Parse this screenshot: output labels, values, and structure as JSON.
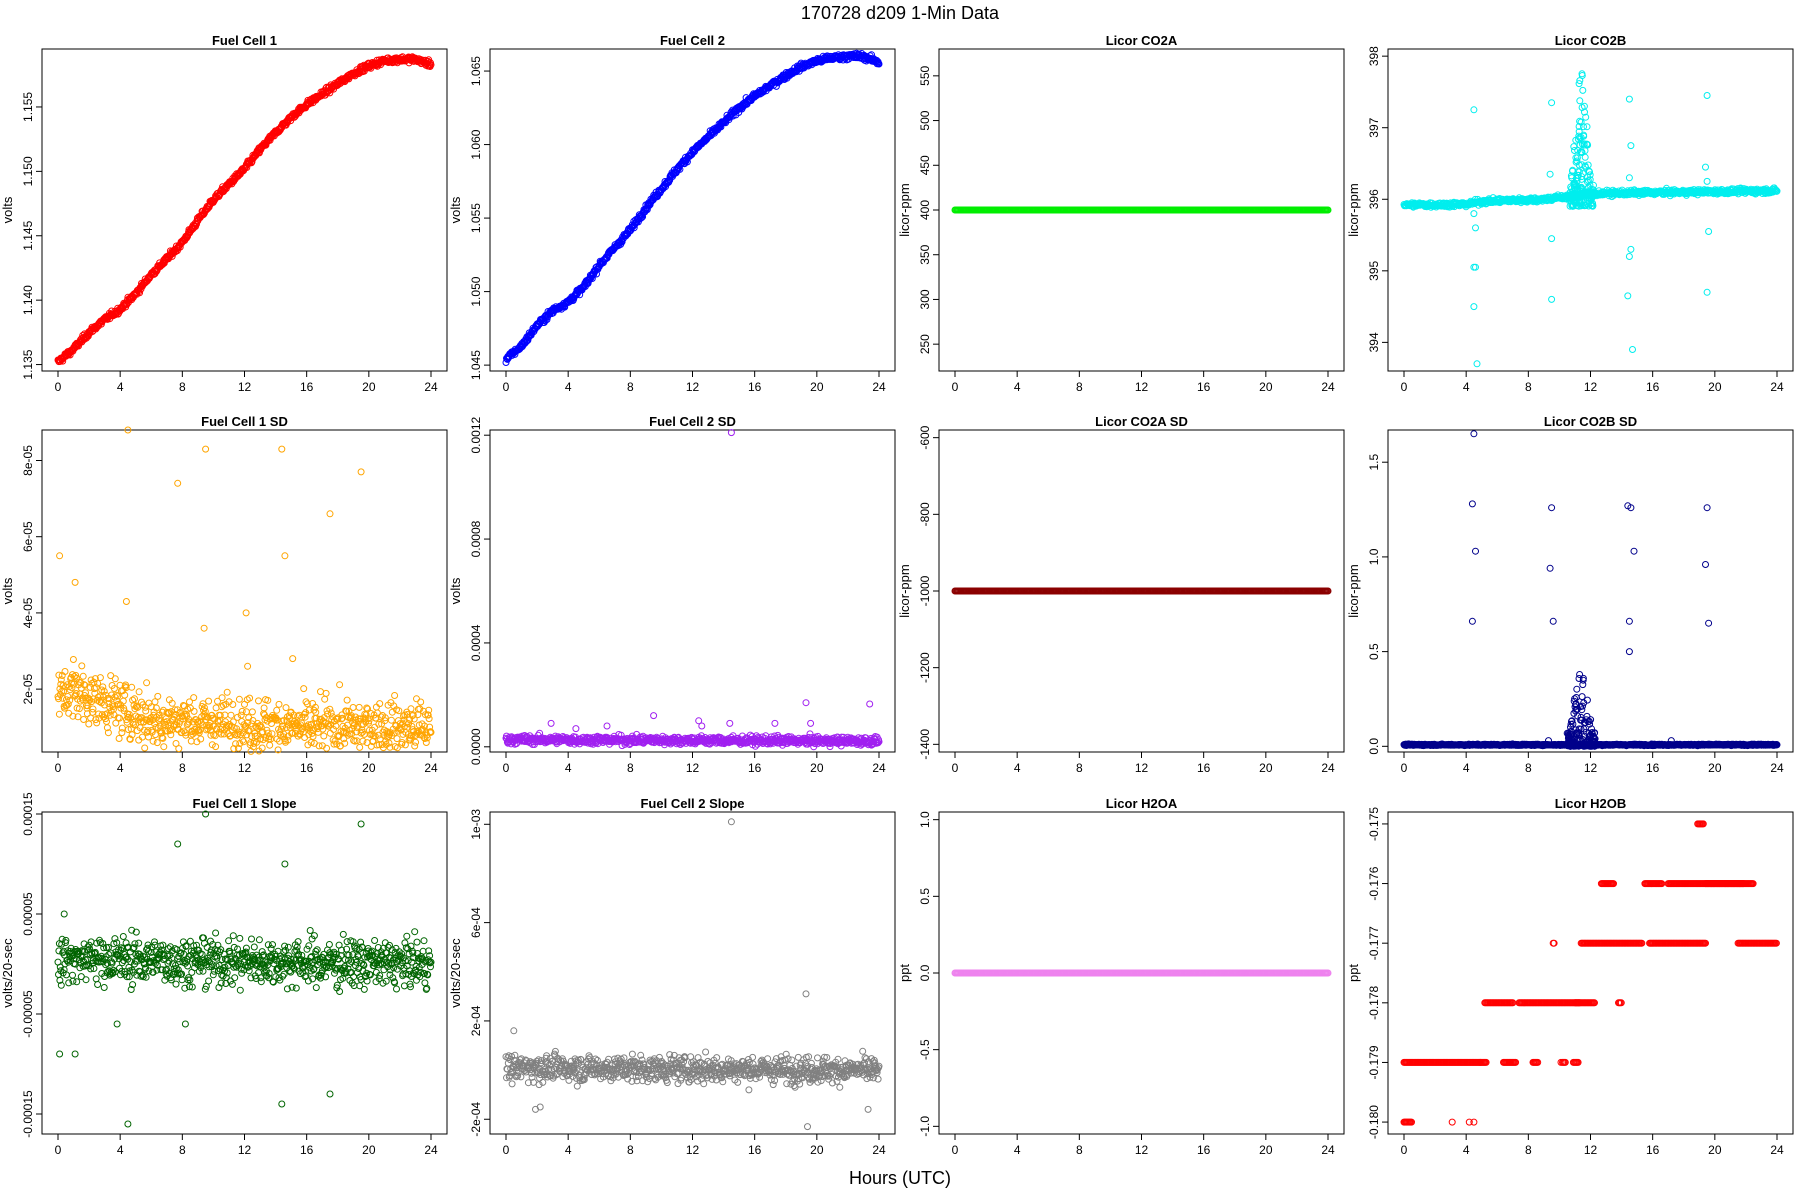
{
  "title": "170728   d209   1-Min Data",
  "xlabel": "Hours (UTC)",
  "chart_data": [
    {
      "type": "scatter",
      "title": "Fuel Cell 1",
      "ylabel": "volts",
      "color": "#ff0000",
      "xlim": [
        0,
        24
      ],
      "ylim": [
        1.1345,
        1.1595
      ],
      "xticks": [
        0,
        4,
        8,
        12,
        16,
        20,
        24
      ],
      "yticks": [
        1.135,
        1.14,
        1.145,
        1.15,
        1.155
      ],
      "yticklabels": [
        "1.135",
        "1.140",
        "1.145",
        "1.150",
        "1.155"
      ],
      "pattern": {
        "kind": "points",
        "points": [
          [
            0,
            1.1352
          ],
          [
            1,
            1.1362
          ],
          [
            2,
            1.1375
          ],
          [
            3,
            1.1385
          ],
          [
            4,
            1.1393
          ],
          [
            5,
            1.1405
          ],
          [
            6,
            1.142
          ],
          [
            7,
            1.1432
          ],
          [
            8,
            1.1445
          ],
          [
            9,
            1.1462
          ],
          [
            10,
            1.1478
          ],
          [
            11,
            1.149
          ],
          [
            12,
            1.1502
          ],
          [
            13,
            1.1517
          ],
          [
            14,
            1.153
          ],
          [
            15,
            1.1542
          ],
          [
            16,
            1.1552
          ],
          [
            17,
            1.156
          ],
          [
            18,
            1.1568
          ],
          [
            19,
            1.1576
          ],
          [
            20,
            1.1582
          ],
          [
            21,
            1.1586
          ],
          [
            22,
            1.1587
          ],
          [
            23,
            1.1587
          ],
          [
            24,
            1.1583
          ]
        ],
        "noise": 0.0002
      }
    },
    {
      "type": "scatter",
      "title": "Fuel Cell 2",
      "ylabel": "volts",
      "color": "#0000ff",
      "xlim": [
        0,
        24
      ],
      "ylim": [
        1.0446,
        1.0665
      ],
      "xticks": [
        0,
        4,
        8,
        12,
        16,
        20,
        24
      ],
      "yticks": [
        1.045,
        1.05,
        1.055,
        1.06,
        1.065
      ],
      "yticklabels": [
        "1.045",
        "1.050",
        "1.055",
        "1.060",
        "1.065"
      ],
      "pattern": {
        "kind": "points",
        "points": [
          [
            0,
            1.0454
          ],
          [
            1,
            1.0463
          ],
          [
            2,
            1.0477
          ],
          [
            3,
            1.0487
          ],
          [
            4,
            1.0493
          ],
          [
            5,
            1.0503
          ],
          [
            6,
            1.0518
          ],
          [
            7,
            1.053
          ],
          [
            8,
            1.0542
          ],
          [
            9,
            1.0557
          ],
          [
            10,
            1.057
          ],
          [
            11,
            1.0583
          ],
          [
            12,
            1.0595
          ],
          [
            13,
            1.0605
          ],
          [
            14,
            1.0615
          ],
          [
            15,
            1.0625
          ],
          [
            16,
            1.0633
          ],
          [
            17,
            1.064
          ],
          [
            18,
            1.0647
          ],
          [
            19,
            1.0653
          ],
          [
            20,
            1.0657
          ],
          [
            21,
            1.0659
          ],
          [
            22,
            1.066
          ],
          [
            23,
            1.066
          ],
          [
            24,
            1.0656
          ]
        ],
        "noise": 0.00018
      }
    },
    {
      "type": "scatter",
      "title": "Licor CO2A",
      "ylabel": "licor-ppm",
      "color": "#00ee00",
      "xlim": [
        0,
        24
      ],
      "ylim": [
        220,
        580
      ],
      "xticks": [
        0,
        4,
        8,
        12,
        16,
        20,
        24
      ],
      "yticks": [
        250,
        300,
        350,
        400,
        450,
        500,
        550
      ],
      "yticklabels": [
        "250",
        "300",
        "350",
        "400",
        "450",
        "500",
        "550"
      ],
      "pattern": {
        "kind": "const",
        "value": 400,
        "noise": 0
      }
    },
    {
      "type": "scatter",
      "title": "Licor CO2B",
      "ylabel": "licor-ppm",
      "color": "#00eeee",
      "xlim": [
        0,
        24
      ],
      "ylim": [
        393.6,
        398.1
      ],
      "xticks": [
        0,
        4,
        8,
        12,
        16,
        20,
        24
      ],
      "yticks": [
        394,
        395,
        396,
        397,
        398
      ],
      "yticklabels": [
        "394",
        "395",
        "396",
        "397",
        "398"
      ],
      "pattern": {
        "kind": "points",
        "points": [
          [
            0,
            395.92
          ],
          [
            4,
            395.93
          ],
          [
            5,
            395.97
          ],
          [
            9,
            396.0
          ],
          [
            11,
            396.05
          ],
          [
            12,
            396.08
          ],
          [
            24,
            396.12
          ]
        ],
        "noise": 0.03
      },
      "outliers": [
        [
          4.5,
          397.25
        ],
        [
          4.5,
          395.05
        ],
        [
          4.6,
          395.05
        ],
        [
          4.5,
          394.5
        ],
        [
          4.7,
          393.7
        ],
        [
          4.6,
          395.6
        ],
        [
          4.5,
          395.8
        ],
        [
          9.5,
          397.35
        ],
        [
          9.5,
          394.6
        ],
        [
          9.5,
          395.45
        ],
        [
          9.4,
          396.35
        ],
        [
          14.5,
          397.4
        ],
        [
          14.5,
          396.3
        ],
        [
          14.6,
          395.3
        ],
        [
          14.5,
          395.2
        ],
        [
          14.4,
          394.65
        ],
        [
          14.7,
          393.9
        ],
        [
          14.6,
          396.75
        ],
        [
          19.5,
          397.45
        ],
        [
          19.5,
          394.7
        ],
        [
          19.6,
          395.55
        ],
        [
          19.4,
          396.45
        ],
        [
          19.5,
          396.25
        ]
      ],
      "burst": {
        "x": [
          10.6,
          12.2
        ],
        "y": [
          395.9,
          398.1
        ],
        "n": 160
      }
    },
    {
      "type": "scatter",
      "title": "Fuel Cell 1 SD",
      "ylabel": "volts",
      "color": "#ffa500",
      "xlim": [
        0,
        24
      ],
      "ylim": [
        3.5e-06,
        8.8e-05
      ],
      "xticks": [
        0,
        4,
        8,
        12,
        16,
        20,
        24
      ],
      "yticks": [
        2e-05,
        4e-05,
        6e-05,
        8e-05
      ],
      "yticklabels": [
        "2e-05",
        "4e-05",
        "6e-05",
        "8e-05"
      ],
      "pattern": {
        "kind": "points",
        "points": [
          [
            0,
            1.8e-05
          ],
          [
            1,
            2e-05
          ],
          [
            2,
            1.8e-05
          ],
          [
            4,
            1.5e-05
          ],
          [
            6,
            1.2e-05
          ],
          [
            10,
            1.1e-05
          ],
          [
            16,
            1e-05
          ],
          [
            24,
            1e-05
          ]
        ],
        "noise": 6e-06
      },
      "outliers": [
        [
          0.1,
          5.5e-05
        ],
        [
          4.5,
          8.8e-05
        ],
        [
          7.7,
          7.4e-05
        ],
        [
          9.5,
          8.3e-05
        ],
        [
          14.4,
          8.3e-05
        ],
        [
          14.6,
          5.5e-05
        ],
        [
          17.5,
          6.6e-05
        ],
        [
          19.5,
          7.7e-05
        ],
        [
          12.1,
          4e-05
        ],
        [
          9.4,
          3.6e-05
        ],
        [
          4.4,
          4.3e-05
        ],
        [
          15.1,
          2.8e-05
        ],
        [
          1.1,
          4.8e-05
        ],
        [
          12.2,
          2.6e-05
        ]
      ]
    },
    {
      "type": "scatter",
      "title": "Fuel Cell 2 SD",
      "ylabel": "volts",
      "color": "#a020f0",
      "xlim": [
        0,
        24
      ],
      "ylim": [
        -2e-05,
        0.00122
      ],
      "xticks": [
        0,
        4,
        8,
        12,
        16,
        20,
        24
      ],
      "yticks": [
        0,
        0.0004,
        0.0008,
        0.0012
      ],
      "yticklabels": [
        "0.0000",
        "0.0004",
        "0.0008",
        "0.0012"
      ],
      "pattern": {
        "kind": "points",
        "points": [
          [
            0,
            2.8e-05
          ],
          [
            24,
            2.2e-05
          ]
        ],
        "noise": 1.4e-05
      },
      "outliers": [
        [
          14.5,
          0.00121
        ],
        [
          19.3,
          0.00017
        ],
        [
          23.4,
          0.000165
        ],
        [
          9.5,
          0.00012
        ],
        [
          12.4,
          0.0001
        ],
        [
          12.6,
          8e-05
        ],
        [
          14.4,
          9e-05
        ],
        [
          17.3,
          9e-05
        ],
        [
          2.9,
          9e-05
        ],
        [
          6.5,
          8e-05
        ],
        [
          19.6,
          9e-05
        ],
        [
          4.5,
          7e-05
        ]
      ]
    },
    {
      "type": "scatter",
      "title": "Licor CO2A SD",
      "ylabel": "licor-ppm",
      "color": "#8b0000",
      "xlim": [
        0,
        24
      ],
      "ylim": [
        -1420,
        -580
      ],
      "xticks": [
        0,
        4,
        8,
        12,
        16,
        20,
        24
      ],
      "yticks": [
        -1400,
        -1200,
        -1000,
        -800,
        -600
      ],
      "yticklabels": [
        "-1400",
        "-1200",
        "-1000",
        "-800",
        "-600"
      ],
      "pattern": {
        "kind": "const",
        "value": -1000,
        "noise": 0
      }
    },
    {
      "type": "scatter",
      "title": "Licor CO2B SD",
      "ylabel": "licor-ppm",
      "color": "#00008b",
      "xlim": [
        0,
        24
      ],
      "ylim": [
        -0.03,
        1.67
      ],
      "xticks": [
        0,
        4,
        8,
        12,
        16,
        20,
        24
      ],
      "yticks": [
        0,
        0.5,
        1,
        1.5
      ],
      "yticklabels": [
        "0.0",
        "0.5",
        "1.0",
        "1.5"
      ],
      "pattern": {
        "kind": "points",
        "points": [
          [
            0,
            0.008
          ],
          [
            24,
            0.008
          ]
        ],
        "noise": 0.003
      },
      "outliers": [
        [
          4.5,
          1.65
        ],
        [
          4.4,
          1.28
        ],
        [
          4.6,
          1.03
        ],
        [
          4.4,
          0.66
        ],
        [
          9.5,
          1.26
        ],
        [
          9.4,
          0.94
        ],
        [
          9.6,
          0.66
        ],
        [
          14.4,
          1.27
        ],
        [
          14.6,
          1.26
        ],
        [
          14.8,
          1.03
        ],
        [
          14.5,
          0.66
        ],
        [
          14.5,
          0.5
        ],
        [
          19.5,
          1.26
        ],
        [
          19.4,
          0.96
        ],
        [
          19.6,
          0.65
        ],
        [
          17.2,
          0.03
        ],
        [
          9.3,
          0.03
        ]
      ],
      "burst": {
        "x": [
          10.5,
          12.3
        ],
        "y": [
          0.0,
          0.48
        ],
        "n": 140
      }
    },
    {
      "type": "scatter",
      "title": "Fuel Cell 1 Slope",
      "ylabel": "volts/20-sec",
      "color": "#006400",
      "xlim": [
        0,
        24
      ],
      "ylim": [
        -0.00017,
        0.000152
      ],
      "xticks": [
        0,
        4,
        8,
        12,
        16,
        20,
        24
      ],
      "yticks": [
        -0.00015,
        -5e-05,
        5e-05,
        0.00015
      ],
      "yticklabels": [
        "-0.00015",
        "-0.00005",
        "0.00005",
        "0.00015"
      ],
      "pattern": {
        "kind": "points",
        "points": [
          [
            0,
            5e-06
          ],
          [
            24,
            0.0
          ]
        ],
        "noise": 2e-05
      },
      "outliers": [
        [
          9.5,
          0.00015
        ],
        [
          19.5,
          0.00014
        ],
        [
          7.7,
          0.00012
        ],
        [
          14.6,
          0.0001
        ],
        [
          17.5,
          -0.00013
        ],
        [
          14.4,
          -0.00014
        ],
        [
          4.5,
          -0.00016
        ],
        [
          0.1,
          -9e-05
        ],
        [
          1.1,
          -9e-05
        ],
        [
          3.8,
          -6e-05
        ],
        [
          0.4,
          5e-05
        ],
        [
          8.2,
          -6e-05
        ]
      ]
    },
    {
      "type": "scatter",
      "title": "Fuel Cell 2 Slope",
      "ylabel": "volts/20-sec",
      "color": "#808080",
      "xlim": [
        0,
        24
      ],
      "ylim": [
        -0.00026,
        0.00105
      ],
      "xticks": [
        0,
        4,
        8,
        12,
        16,
        20,
        24
      ],
      "yticks": [
        -0.0002,
        0.0002,
        0.0006,
        0.001
      ],
      "yticklabels": [
        "-2e-04",
        "2e-04",
        "6e-04",
        "1e-03"
      ],
      "pattern": {
        "kind": "points",
        "points": [
          [
            0,
            1e-05
          ],
          [
            24,
            0.0
          ]
        ],
        "noise": 4.5e-05
      },
      "outliers": [
        [
          14.5,
          0.00101
        ],
        [
          19.3,
          0.00031
        ],
        [
          19.4,
          -0.00023
        ],
        [
          23.3,
          -0.00016
        ],
        [
          1.9,
          -0.00016
        ],
        [
          0.5,
          0.00016
        ],
        [
          2.2,
          -0.00015
        ]
      ]
    },
    {
      "type": "scatter",
      "title": "Licor H2OA",
      "ylabel": "ppt",
      "color": "#ee82ee",
      "xlim": [
        0,
        24
      ],
      "ylim": [
        -1.05,
        1.05
      ],
      "xticks": [
        0,
        4,
        8,
        12,
        16,
        20,
        24
      ],
      "yticks": [
        -1,
        -0.5,
        0,
        0.5,
        1
      ],
      "yticklabels": [
        "-1.0",
        "-0.5",
        "0.0",
        "0.5",
        "1.0"
      ],
      "pattern": {
        "kind": "const",
        "value": 0,
        "noise": 0
      }
    },
    {
      "type": "scatter",
      "title": "Licor H2OB",
      "ylabel": "ppt",
      "color": "#ff0000",
      "xlim": [
        0,
        24
      ],
      "ylim": [
        -0.1802,
        -0.1748
      ],
      "xticks": [
        0,
        4,
        8,
        12,
        16,
        20,
        24
      ],
      "yticks": [
        -0.18,
        -0.179,
        -0.178,
        -0.177,
        -0.176,
        -0.175
      ],
      "yticklabels": [
        "-0.180",
        "-0.179",
        "-0.178",
        "-0.177",
        "-0.176",
        "-0.175"
      ],
      "pattern": {
        "kind": "levels",
        "segments": [
          [
            0,
            0.5,
            -0.18
          ],
          [
            0,
            5.3,
            -0.179
          ],
          [
            5.2,
            7,
            -0.178
          ],
          [
            6.4,
            7.2,
            -0.179
          ],
          [
            7.4,
            11.3,
            -0.178
          ],
          [
            8.3,
            8.6,
            -0.179
          ],
          [
            9.6,
            9.7,
            -0.177
          ],
          [
            10.2,
            10.4,
            -0.179
          ],
          [
            10.9,
            11.2,
            -0.179
          ],
          [
            11.0,
            12.3,
            -0.178
          ],
          [
            11.4,
            15.3,
            -0.177
          ],
          [
            12.7,
            13.5,
            -0.176
          ],
          [
            13.8,
            14.0,
            -0.178
          ],
          [
            15.5,
            16.6,
            -0.176
          ],
          [
            15.8,
            19.4,
            -0.177
          ],
          [
            17.0,
            22.5,
            -0.176
          ],
          [
            18.9,
            19.3,
            -0.175
          ],
          [
            19.4,
            21.9,
            -0.176
          ],
          [
            21.5,
            24,
            -0.177
          ]
        ]
      },
      "outliers": [
        [
          3.1,
          -0.18
        ],
        [
          4.2,
          -0.18
        ],
        [
          4.5,
          -0.18
        ],
        [
          10.1,
          -0.179
        ],
        [
          4.9,
          -0.179
        ]
      ]
    }
  ]
}
